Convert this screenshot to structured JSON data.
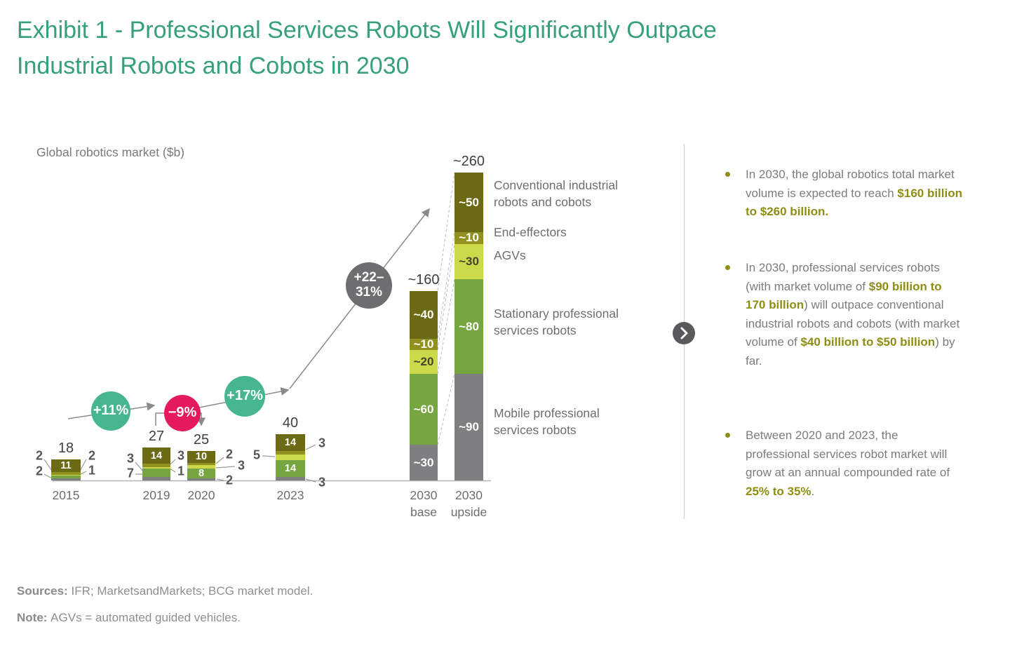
{
  "title": {
    "line1": "Exhibit 1 - Professional Services Robots Will Significantly Outpace",
    "line2": "Industrial Robots and Cobots in 2030"
  },
  "chart_data": {
    "type": "bar",
    "stacked": true,
    "axis_title": "Global robotics market ($b)",
    "unit": "$ billions",
    "categories": [
      "2015",
      "2019",
      "2020",
      "2023",
      "2030 base",
      "2030 upside"
    ],
    "series_bottom_to_top": [
      "mobile",
      "stationary",
      "agv",
      "endeffector",
      "conventional"
    ],
    "series_display_names": {
      "conventional": "Conventional industrial robots and cobots",
      "endeffector": "End-effectors",
      "agv": "AGVs",
      "stationary": "Stationary professional services robots",
      "mobile": "Mobile professional services robots"
    },
    "colors": {
      "conventional": "#6d6a15",
      "endeffector": "#90911f",
      "agv": "#ccd94a",
      "stationary": "#77a53f",
      "mobile": "#7e7f81"
    },
    "bars": [
      {
        "category": "2015",
        "total_label": "18",
        "segments": [
          {
            "series": "mobile",
            "value": 2
          },
          {
            "series": "stationary",
            "value": 2
          },
          {
            "series": "agv",
            "value": 1
          },
          {
            "series": "endeffector",
            "value": 2
          },
          {
            "series": "conventional",
            "value": 11,
            "label": "11"
          }
        ],
        "callouts": {
          "left": [
            "2",
            "2"
          ],
          "right": [
            "2",
            "1"
          ]
        }
      },
      {
        "category": "2019",
        "total_label": "27",
        "segments": [
          {
            "series": "mobile",
            "value": 3
          },
          {
            "series": "stationary",
            "value": 7
          },
          {
            "series": "agv",
            "value": 1
          },
          {
            "series": "endeffector",
            "value": 3
          },
          {
            "series": "conventional",
            "value": 14,
            "label": "14"
          }
        ],
        "callouts": {
          "left": [
            "3",
            "7"
          ],
          "right": [
            "3",
            "1"
          ]
        }
      },
      {
        "category": "2020",
        "total_label": "25",
        "segments": [
          {
            "series": "mobile",
            "value": 2
          },
          {
            "series": "stationary",
            "value": 8,
            "label": "8"
          },
          {
            "series": "agv",
            "value": 3
          },
          {
            "series": "endeffector",
            "value": 2
          },
          {
            "series": "conventional",
            "value": 10,
            "label": "10"
          }
        ],
        "callouts": {
          "left": [],
          "right": [
            "2",
            "3",
            "2"
          ]
        }
      },
      {
        "category": "2023",
        "total_label": "40",
        "segments": [
          {
            "series": "mobile",
            "value": 3
          },
          {
            "series": "stationary",
            "value": 14,
            "label": "14"
          },
          {
            "series": "agv",
            "value": 5
          },
          {
            "series": "endeffector",
            "value": 3
          },
          {
            "series": "conventional",
            "value": 14,
            "label": "14"
          }
        ],
        "callouts": {
          "left": [
            "5"
          ],
          "right": [
            "3",
            "3"
          ]
        }
      },
      {
        "category": "2030 base",
        "total_label": "~160",
        "segments": [
          {
            "series": "mobile",
            "value": 30,
            "label": "~30"
          },
          {
            "series": "stationary",
            "value": 60,
            "label": "~60"
          },
          {
            "series": "agv",
            "value": 20,
            "label": "~20"
          },
          {
            "series": "endeffector",
            "value": 10,
            "label": "~10"
          },
          {
            "series": "conventional",
            "value": 40,
            "label": "~40"
          }
        ],
        "callouts": {
          "left": [],
          "right": []
        }
      },
      {
        "category": "2030 upside",
        "total_label": "~260",
        "segments": [
          {
            "series": "mobile",
            "value": 90,
            "label": "~90"
          },
          {
            "series": "stationary",
            "value": 80,
            "label": "~80"
          },
          {
            "series": "agv",
            "value": 30,
            "label": "~30"
          },
          {
            "series": "endeffector",
            "value": 10,
            "label": "~10"
          },
          {
            "series": "conventional",
            "value": 50,
            "label": "~50"
          }
        ],
        "callouts": {
          "left": [],
          "right": []
        }
      }
    ],
    "growth_badges": [
      {
        "lines": [
          "+11%"
        ],
        "color": "teal",
        "from": "2015",
        "to": "2019"
      },
      {
        "lines": [
          "−9%"
        ],
        "color": "pink",
        "from": "2019",
        "to": "2020"
      },
      {
        "lines": [
          "+17%"
        ],
        "color": "teal",
        "from": "2020",
        "to": "2023"
      },
      {
        "lines": [
          "+22–",
          "31%"
        ],
        "color": "gray",
        "from": "2023",
        "to": "2030"
      }
    ],
    "badge_colors": {
      "teal": "#46b78c",
      "pink": "#e41a5c",
      "gray": "#6d6e70"
    }
  },
  "legend": [
    {
      "id": "conventional",
      "text": "Conventional industrial\nrobots and cobots"
    },
    {
      "id": "endeffector",
      "text": "End-effectors"
    },
    {
      "id": "agv",
      "text": "AGVs"
    },
    {
      "id": "stationary",
      "text": "Stationary professional\nservices robots"
    },
    {
      "id": "mobile",
      "text": "Mobile professional\nservices robots"
    }
  ],
  "insights": [
    {
      "segments": [
        {
          "t": "In 2030, the global robotics total market volume is expected to reach "
        },
        {
          "t": "$160 billion to $260 billion.",
          "b": true
        }
      ]
    },
    {
      "segments": [
        {
          "t": "In 2030, professional services robots (with market volume of "
        },
        {
          "t": "$90 billion to 170 billion",
          "b": true
        },
        {
          "t": ") will outpace conventional industrial robots and cobots (with market volume of "
        },
        {
          "t": "$40 billion to $50 billion",
          "b": true
        },
        {
          "t": ") by far."
        }
      ]
    },
    {
      "segments": [
        {
          "t": "Between 2020 and 2023, the professional services robot market will grow at an annual compounded rate of "
        },
        {
          "t": "25% to 35%",
          "b": true
        },
        {
          "t": "."
        }
      ]
    }
  ],
  "footer": {
    "sources": [
      {
        "t": "Sources: ",
        "b": true
      },
      {
        "t": "IFR; MarketsandMarkets; BCG market model."
      }
    ],
    "note": [
      {
        "t": "Note: ",
        "b": true
      },
      {
        "t": "AGVs = automated guided vehicles."
      }
    ]
  }
}
